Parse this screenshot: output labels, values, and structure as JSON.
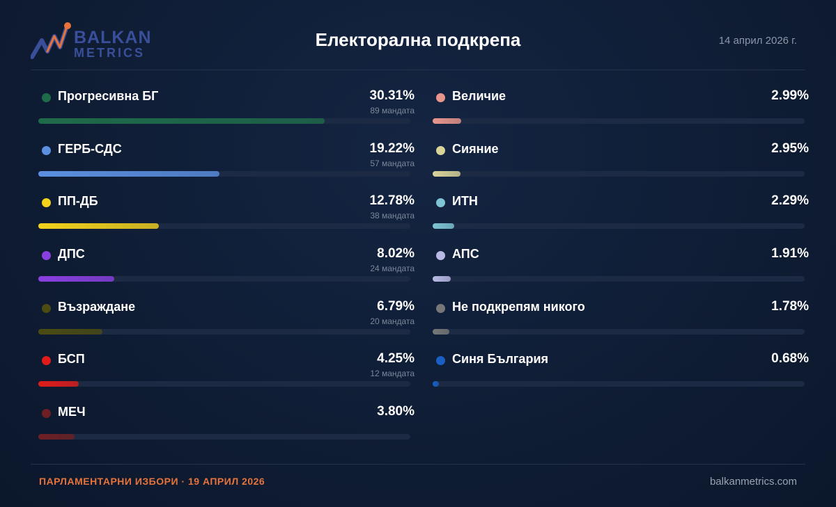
{
  "header": {
    "logo_line1": "BALKAN",
    "logo_line2": "METRICS",
    "date": "14 април 2026 г."
  },
  "footer": {
    "election": "ПАРЛАМЕНТАРНИ ИЗБОРИ · 19 АПРИЛ 2026",
    "site": "balkanmetrics.com"
  },
  "colors": {
    "background": "#0f1d35",
    "accent": "#e8733a",
    "logo": "#3a4f9a",
    "track": "#1c2a44"
  },
  "chart_data": {
    "type": "bar",
    "orientation": "horizontal",
    "title": "Електорална подкрепа",
    "xlim": [
      0,
      39.4
    ],
    "unit": "%",
    "parties": [
      {
        "name": "Прогресивна БГ",
        "pct_label": "30.31%",
        "value": 30.31,
        "seats": "89 мандата",
        "color": "#1e6b4a"
      },
      {
        "name": "ГЕРБ-СДС",
        "pct_label": "19.22%",
        "value": 19.22,
        "seats": "57 мандата",
        "color": "#5b8fe0"
      },
      {
        "name": "ПП-ДБ",
        "pct_label": "12.78%",
        "value": 12.78,
        "seats": "38 мандата",
        "color": "#f2d21b"
      },
      {
        "name": "ДПС",
        "pct_label": "8.02%",
        "value": 8.02,
        "seats": "24 мандата",
        "color": "#8a3fe0"
      },
      {
        "name": "Възраждане",
        "pct_label": "6.79%",
        "value": 6.79,
        "seats": "20 мандата",
        "color": "#4b4b12"
      },
      {
        "name": "БСП",
        "pct_label": "4.25%",
        "value": 4.25,
        "seats": "12 мандата",
        "color": "#e01b1b"
      },
      {
        "name": "МЕЧ",
        "pct_label": "3.80%",
        "value": 3.8,
        "seats": "",
        "color": "#6e1f24"
      },
      {
        "name": "Величие",
        "pct_label": "2.99%",
        "value": 2.99,
        "seats": "",
        "color": "#e8968c"
      },
      {
        "name": "Сияние",
        "pct_label": "2.95%",
        "value": 2.95,
        "seats": "",
        "color": "#d9d49a"
      },
      {
        "name": "ИТН",
        "pct_label": "2.29%",
        "value": 2.29,
        "seats": "",
        "color": "#7ec4d4"
      },
      {
        "name": "АПС",
        "pct_label": "1.91%",
        "value": 1.91,
        "seats": "",
        "color": "#b9b9e6"
      },
      {
        "name": "Не подкрепям никого",
        "pct_label": "1.78%",
        "value": 1.78,
        "seats": "",
        "color": "#777777"
      },
      {
        "name": "Синя България",
        "pct_label": "0.68%",
        "value": 0.68,
        "seats": "",
        "color": "#1a5fc4"
      }
    ]
  }
}
